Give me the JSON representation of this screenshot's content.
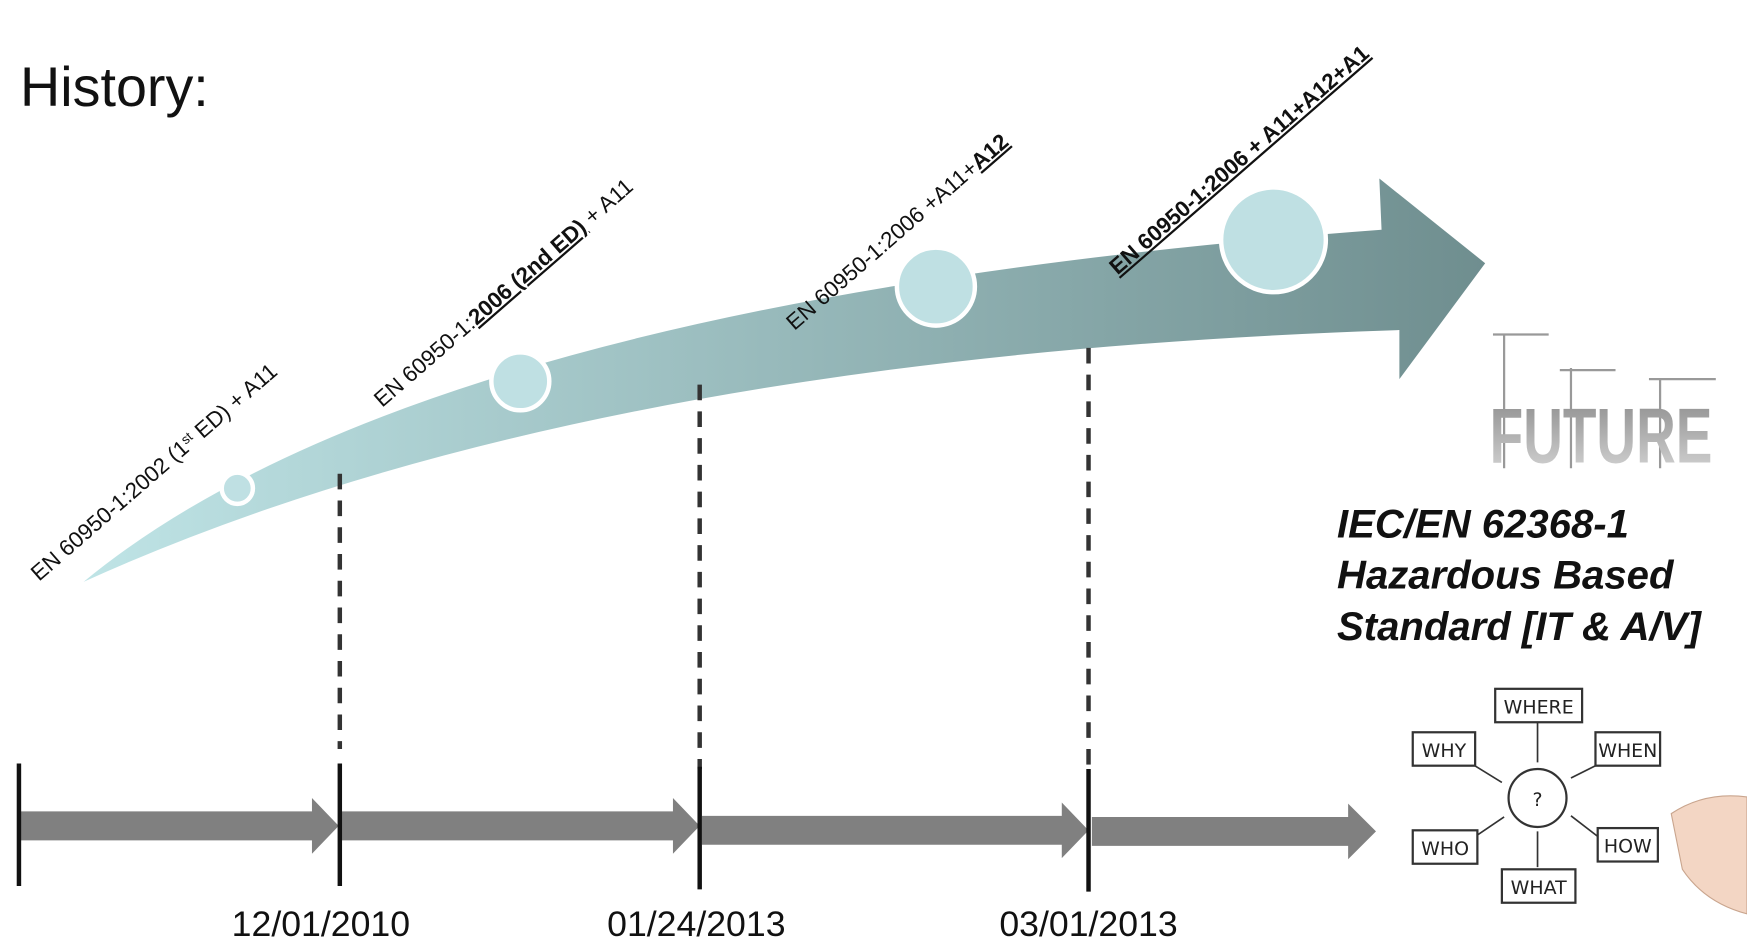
{
  "header": {
    "title": "History:"
  },
  "milestones": [
    {
      "parts": [
        "EN 60950-1:2002 (1",
        "st",
        " ED) + A11"
      ]
    },
    {
      "parts": [
        "EN 60950-1:",
        "2006 (2nd ED)",
        " + A11"
      ]
    },
    {
      "parts": [
        "EN 60950-1:2006 +A11+",
        "A12"
      ]
    },
    {
      "parts": [
        "EN 60950-1:2006 + A11+A12+A1"
      ]
    }
  ],
  "dates": [
    "12/01/2010",
    "01/24/2013",
    "03/01/2013"
  ],
  "future": {
    "image_text": "FUTURE",
    "lines": [
      "IEC/EN 62368-1",
      "Hazardous Based",
      "Standard [IT & A/V]"
    ]
  },
  "sketch": {
    "center": "?",
    "words": [
      "WHERE",
      "WHY",
      "WHEN",
      "WHO",
      "HOW",
      "WHAT"
    ]
  }
}
